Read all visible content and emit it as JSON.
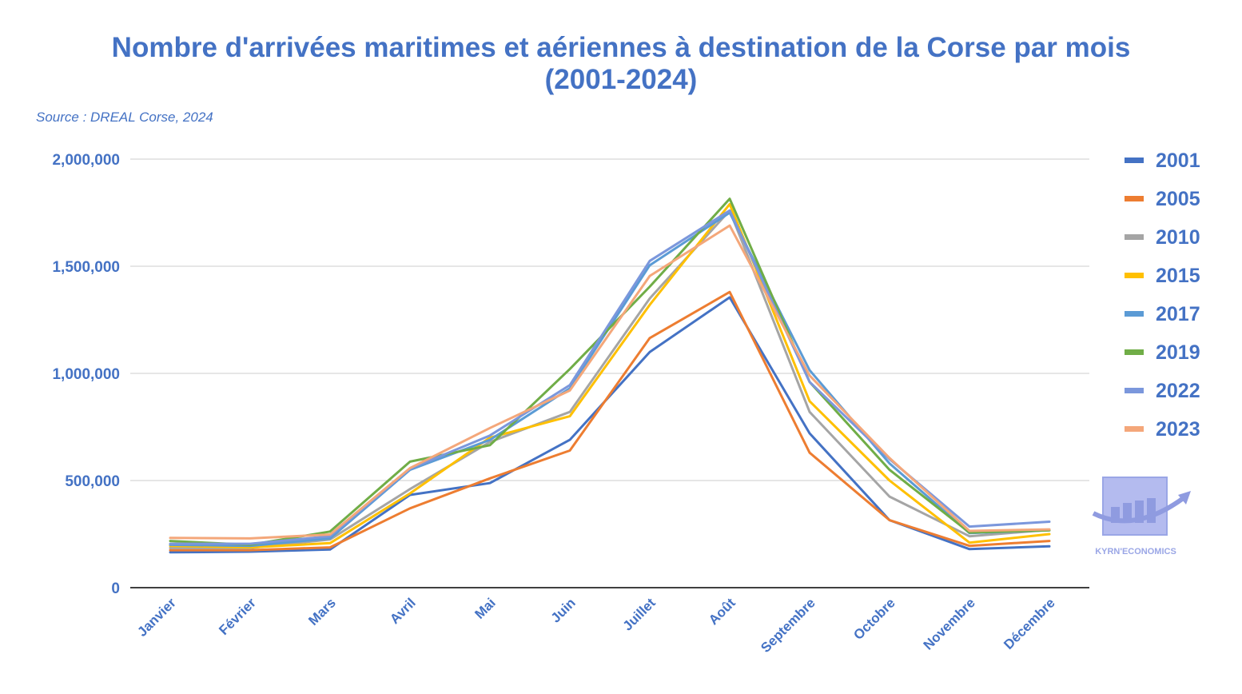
{
  "chart_data": {
    "type": "line",
    "title_line1": "Nombre d'arrivées maritimes et aériennes à destination de la Corse par mois",
    "title_line2": "(2001-2024)",
    "source": "Source : DREAL Corse, 2024",
    "categories": [
      "Janvier",
      "Février",
      "Mars",
      "Avril",
      "Mai",
      "Juin",
      "Juillet",
      "Août",
      "Septembre",
      "Octobre",
      "Novembre",
      "Décembre"
    ],
    "ylim": [
      0,
      2000000
    ],
    "yticks": [
      {
        "value": 0,
        "label": "0"
      },
      {
        "value": 500000,
        "label": "500,000"
      },
      {
        "value": 1000000,
        "label": "1,000,000"
      },
      {
        "value": 1500000,
        "label": "1,500,000"
      },
      {
        "value": 2000000,
        "label": "2,000,000"
      }
    ],
    "grid": true,
    "legend_position": "right",
    "series": [
      {
        "name": "2001",
        "color": "#4472c4",
        "values": [
          165000,
          168000,
          178000,
          433000,
          488000,
          690000,
          1100000,
          1355000,
          720000,
          315000,
          180000,
          193000
        ]
      },
      {
        "name": "2005",
        "color": "#ed7d31",
        "values": [
          175000,
          175000,
          188000,
          370000,
          510000,
          640000,
          1165000,
          1380000,
          630000,
          315000,
          195000,
          218000
        ]
      },
      {
        "name": "2010",
        "color": "#a5a5a5",
        "values": [
          185000,
          185000,
          225000,
          460000,
          680000,
          820000,
          1350000,
          1760000,
          820000,
          425000,
          240000,
          270000
        ]
      },
      {
        "name": "2015",
        "color": "#ffc000",
        "values": [
          195000,
          188000,
          208000,
          440000,
          700000,
          800000,
          1320000,
          1790000,
          870000,
          500000,
          210000,
          250000
        ]
      },
      {
        "name": "2017",
        "color": "#5b9bd5",
        "values": [
          200000,
          195000,
          230000,
          550000,
          690000,
          930000,
          1505000,
          1750000,
          1015000,
          580000,
          255000,
          268000
        ]
      },
      {
        "name": "2019",
        "color": "#70ad47",
        "values": [
          218000,
          200000,
          262000,
          588000,
          665000,
          1020000,
          1405000,
          1815000,
          960000,
          550000,
          257000,
          268000
        ]
      },
      {
        "name": "2022",
        "color": "#7b97dc",
        "values": [
          205000,
          205000,
          240000,
          555000,
          710000,
          945000,
          1525000,
          1760000,
          960000,
          600000,
          285000,
          308000
        ]
      },
      {
        "name": "2023",
        "color": "#f4a77a",
        "values": [
          232000,
          230000,
          248000,
          558000,
          745000,
          920000,
          1455000,
          1690000,
          990000,
          605000,
          265000,
          272000
        ]
      }
    ],
    "logo_text": "KYRN'ECONOMICS"
  }
}
